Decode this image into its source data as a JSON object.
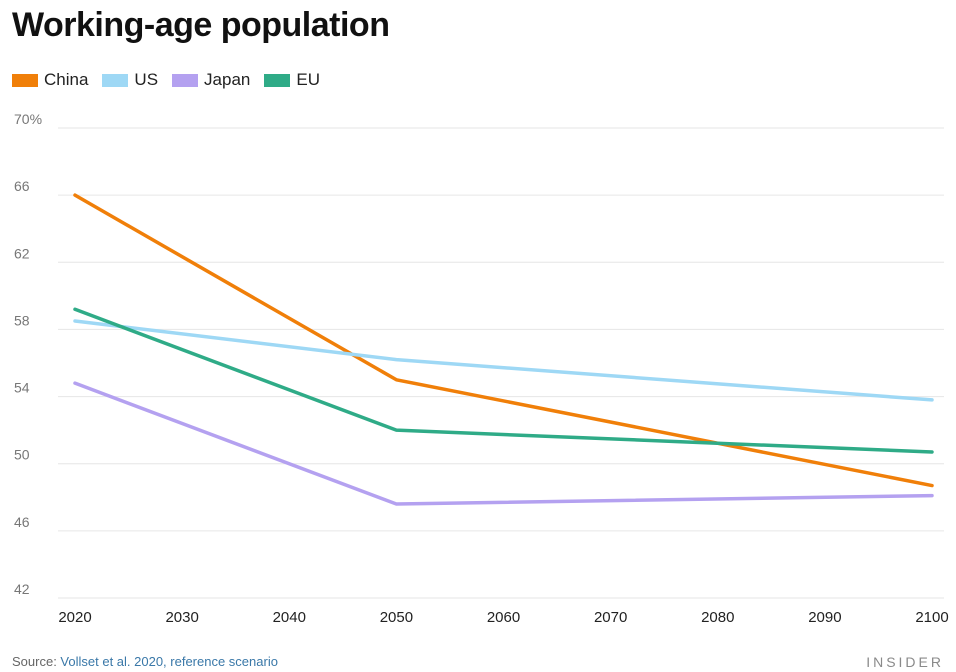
{
  "chart_data": {
    "type": "line",
    "title": "Working-age population",
    "x": [
      2020,
      2050,
      2100
    ],
    "xticks": [
      "2020",
      "2030",
      "2040",
      "2050",
      "2060",
      "2070",
      "2080",
      "2090",
      "2100"
    ],
    "yticks": [
      "70%",
      "66",
      "62",
      "58",
      "54",
      "50",
      "46",
      "42"
    ],
    "ylim": [
      42,
      70
    ],
    "xlim": [
      2020,
      2100
    ],
    "grid": true,
    "legend": "top-left",
    "series": [
      {
        "name": "China",
        "color": "#f07f09",
        "values": [
          66.0,
          55.0,
          48.7
        ]
      },
      {
        "name": "US",
        "color": "#9ed8f5",
        "values": [
          58.5,
          56.2,
          53.8
        ]
      },
      {
        "name": "Japan",
        "color": "#b4a1f0",
        "values": [
          54.8,
          47.6,
          48.1
        ]
      },
      {
        "name": "EU",
        "color": "#2fab87",
        "values": [
          59.2,
          52.0,
          50.7
        ]
      }
    ]
  },
  "footer": {
    "source_label": "Source: ",
    "source_text": "Vollset et al. 2020, reference scenario",
    "brand": "INSIDER"
  }
}
